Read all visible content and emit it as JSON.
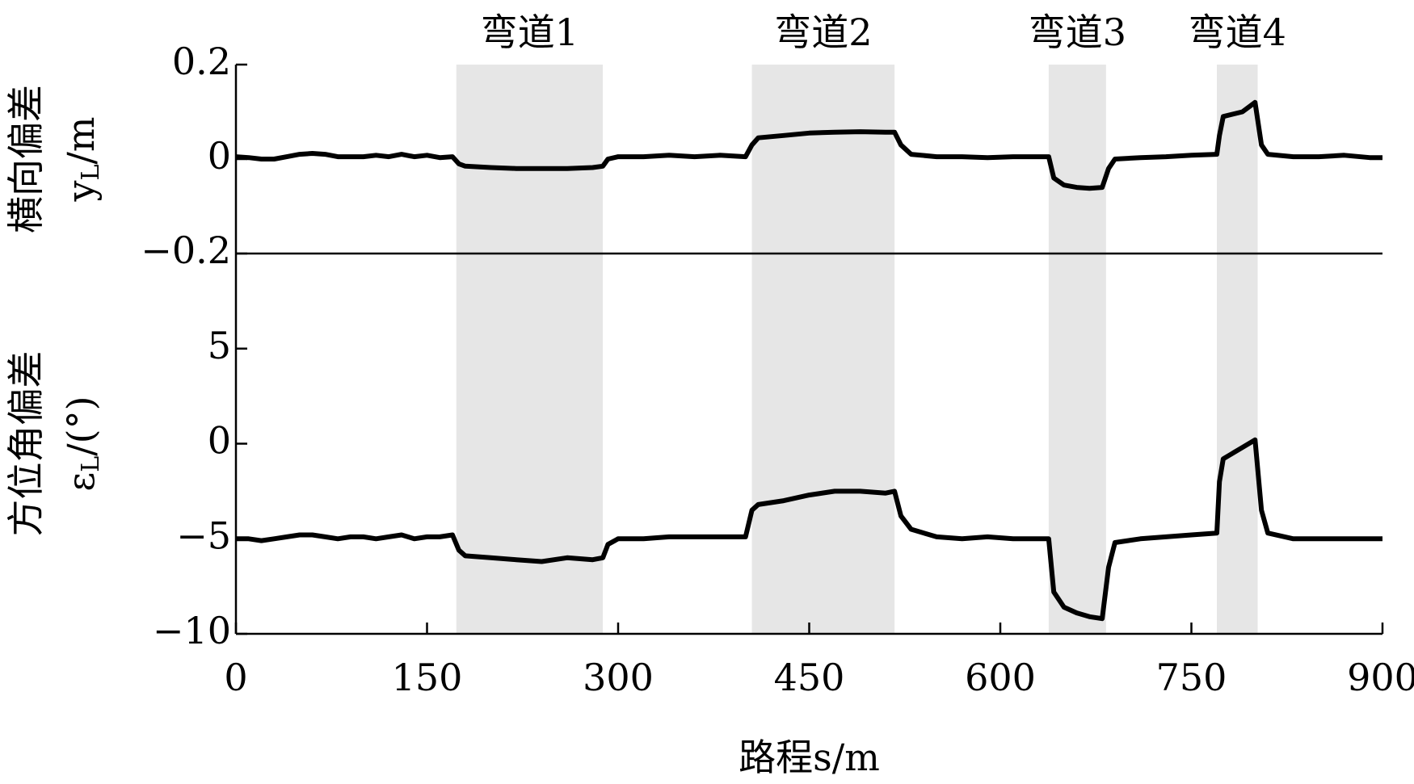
{
  "chart_data": [
    {
      "type": "line",
      "ylabel": "横向偏差",
      "ylabel_symbol": [
        "y",
        "L",
        "/m"
      ],
      "color": "#000000",
      "xlim": [
        0,
        900
      ],
      "ylim": [
        -0.2,
        0.2
      ],
      "yticks": [
        {
          "value": -0.2,
          "label": "−0.2"
        },
        0,
        0.2
      ],
      "regions": [
        {
          "label": "弯道1",
          "x": [
            173,
            288
          ]
        },
        {
          "label": "弯道2",
          "x": [
            405,
            517
          ]
        },
        {
          "label": "弯道3",
          "x": [
            638,
            683
          ]
        },
        {
          "label": "弯道4",
          "x": [
            770,
            802
          ]
        }
      ],
      "region_color": "#e6e6e6",
      "x": [
        0,
        10,
        20,
        30,
        40,
        50,
        60,
        70,
        80,
        90,
        100,
        110,
        120,
        130,
        140,
        150,
        160,
        170,
        175,
        180,
        200,
        220,
        240,
        260,
        280,
        288,
        292,
        300,
        320,
        340,
        360,
        380,
        400,
        405,
        410,
        430,
        450,
        470,
        490,
        510,
        517,
        522,
        530,
        550,
        570,
        590,
        610,
        630,
        638,
        642,
        650,
        660,
        670,
        680,
        685,
        690,
        710,
        730,
        750,
        770,
        772,
        775,
        790,
        800,
        805,
        810,
        830,
        850,
        870,
        890,
        900
      ],
      "values": [
        0.005,
        0.003,
        0.0,
        0.0,
        0.005,
        0.01,
        0.012,
        0.01,
        0.005,
        0.005,
        0.005,
        0.008,
        0.005,
        0.01,
        0.005,
        0.008,
        0.003,
        0.005,
        -0.01,
        -0.015,
        -0.018,
        -0.02,
        -0.02,
        -0.02,
        -0.018,
        -0.015,
        0.0,
        0.005,
        0.005,
        0.008,
        0.005,
        0.008,
        0.005,
        0.03,
        0.045,
        0.05,
        0.055,
        0.057,
        0.058,
        0.057,
        0.057,
        0.03,
        0.01,
        0.005,
        0.005,
        0.003,
        0.005,
        0.005,
        0.005,
        -0.04,
        -0.055,
        -0.06,
        -0.062,
        -0.06,
        -0.02,
        0.0,
        0.003,
        0.005,
        0.008,
        0.01,
        0.05,
        0.09,
        0.1,
        0.12,
        0.03,
        0.01,
        0.005,
        0.005,
        0.008,
        0.003,
        0.003
      ]
    },
    {
      "type": "line",
      "ylabel": "方位角偏差",
      "ylabel_symbol": [
        "ε",
        "L",
        "/(°)"
      ],
      "xlabel": "路程s/m",
      "color": "#000000",
      "xlim": [
        0,
        900
      ],
      "ylim": [
        -10,
        10
      ],
      "yticks": [
        {
          "value": -10,
          "label": "−10"
        },
        {
          "value": -5,
          "label": "−5"
        },
        0,
        5
      ],
      "xticks": [
        0,
        150,
        300,
        450,
        600,
        750,
        900
      ],
      "x": [
        0,
        10,
        20,
        30,
        40,
        50,
        60,
        70,
        80,
        90,
        100,
        110,
        120,
        130,
        140,
        150,
        160,
        170,
        175,
        180,
        200,
        220,
        240,
        260,
        280,
        288,
        292,
        300,
        320,
        340,
        360,
        380,
        400,
        405,
        410,
        430,
        450,
        470,
        490,
        510,
        517,
        522,
        530,
        550,
        570,
        590,
        610,
        630,
        638,
        642,
        650,
        660,
        670,
        680,
        685,
        690,
        710,
        730,
        750,
        770,
        772,
        775,
        790,
        800,
        805,
        810,
        830,
        850,
        870,
        890,
        900
      ],
      "values": [
        -5,
        -5,
        -5.1,
        -5,
        -4.9,
        -4.8,
        -4.8,
        -4.9,
        -5,
        -4.9,
        -4.9,
        -5,
        -4.9,
        -4.8,
        -5,
        -4.9,
        -4.9,
        -4.8,
        -5.6,
        -5.9,
        -6,
        -6.1,
        -6.2,
        -6,
        -6.1,
        -6,
        -5.3,
        -5,
        -5,
        -4.9,
        -4.9,
        -4.9,
        -4.9,
        -3.5,
        -3.2,
        -3,
        -2.7,
        -2.5,
        -2.5,
        -2.6,
        -2.5,
        -3.8,
        -4.5,
        -4.9,
        -5,
        -4.9,
        -5,
        -5,
        -5,
        -7.8,
        -8.6,
        -8.9,
        -9.1,
        -9.2,
        -6.5,
        -5.2,
        -5,
        -4.9,
        -4.8,
        -4.7,
        -2,
        -0.8,
        -0.2,
        0.2,
        -3.5,
        -4.7,
        -5,
        -5,
        -5,
        -5,
        -5
      ]
    }
  ]
}
